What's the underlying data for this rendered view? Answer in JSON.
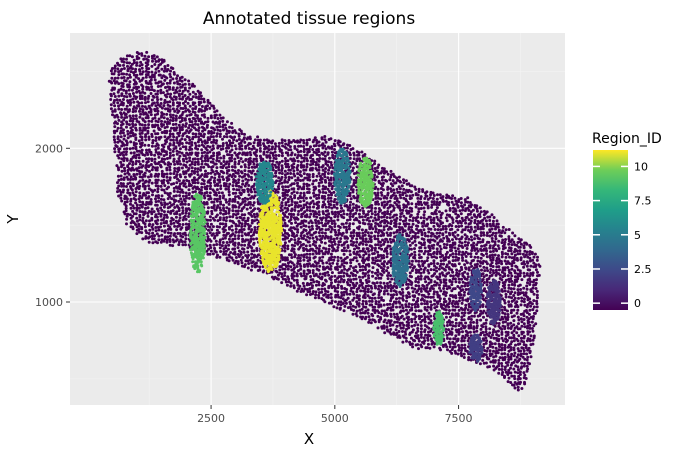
{
  "chart_data": {
    "type": "scatter",
    "title": "Annotated tissue regions",
    "xlabel": "X",
    "ylabel": "Y",
    "xlim": [
      -350,
      9650
    ],
    "ylim": [
      330,
      2750
    ],
    "x_ticks": [
      2500,
      5000,
      7500
    ],
    "y_ticks": [
      1000,
      2000
    ],
    "grid": true,
    "legend": {
      "title": "Region_ID",
      "placement": "right",
      "colorbar_range": [
        -0.5,
        11.2
      ],
      "ticks": [
        0,
        2.5,
        5,
        7.5,
        10
      ],
      "tick_labels": [
        "0",
        "2.5",
        "5",
        "7.5",
        "10"
      ]
    },
    "colors": {
      "panel_bg": "#ebebeb",
      "grid_major": "#ffffff",
      "grid_minor": "#f3f3f3",
      "background_region": "#440154"
    },
    "tissue_outline": [
      [
        430,
        2490
      ],
      [
        660,
        2590
      ],
      [
        1100,
        2640
      ],
      [
        1500,
        2590
      ],
      [
        1800,
        2500
      ],
      [
        2200,
        2400
      ],
      [
        2650,
        2240
      ],
      [
        3150,
        2110
      ],
      [
        3650,
        2060
      ],
      [
        4250,
        2060
      ],
      [
        4800,
        2080
      ],
      [
        5300,
        2030
      ],
      [
        5900,
        1900
      ],
      [
        6500,
        1780
      ],
      [
        7050,
        1710
      ],
      [
        7700,
        1680
      ],
      [
        8150,
        1580
      ],
      [
        8600,
        1450
      ],
      [
        9050,
        1340
      ],
      [
        9150,
        1250
      ],
      [
        9100,
        1000
      ],
      [
        9050,
        800
      ],
      [
        8950,
        620
      ],
      [
        8850,
        450
      ],
      [
        8700,
        420
      ],
      [
        8300,
        540
      ],
      [
        7900,
        600
      ],
      [
        7200,
        680
      ],
      [
        6600,
        700
      ],
      [
        6100,
        780
      ],
      [
        5500,
        890
      ],
      [
        4900,
        980
      ],
      [
        4300,
        1060
      ],
      [
        3700,
        1160
      ],
      [
        3050,
        1240
      ],
      [
        2400,
        1310
      ],
      [
        1800,
        1360
      ],
      [
        1200,
        1390
      ],
      [
        800,
        1490
      ],
      [
        600,
        1720
      ],
      [
        550,
        2000
      ],
      [
        480,
        2250
      ],
      [
        430,
        2490
      ]
    ],
    "regions": [
      {
        "id": 11.0,
        "x": 3700,
        "y": 1460,
        "rx": 230,
        "ry": 270
      },
      {
        "id": 9.6,
        "x": 5620,
        "y": 1780,
        "rx": 160,
        "ry": 160
      },
      {
        "id": 9.2,
        "x": 2230,
        "y": 1450,
        "rx": 160,
        "ry": 260
      },
      {
        "id": 8.8,
        "x": 7100,
        "y": 830,
        "rx": 110,
        "ry": 110
      },
      {
        "id": 5.6,
        "x": 3580,
        "y": 1780,
        "rx": 175,
        "ry": 140
      },
      {
        "id": 4.8,
        "x": 5150,
        "y": 1820,
        "rx": 160,
        "ry": 180
      },
      {
        "id": 4.4,
        "x": 6320,
        "y": 1270,
        "rx": 165,
        "ry": 170
      },
      {
        "id": 2.4,
        "x": 7850,
        "y": 1080,
        "rx": 120,
        "ry": 140
      },
      {
        "id": 2.0,
        "x": 7850,
        "y": 700,
        "rx": 130,
        "ry": 90
      },
      {
        "id": 1.6,
        "x": 8210,
        "y": 1000,
        "rx": 140,
        "ry": 150
      }
    ]
  }
}
